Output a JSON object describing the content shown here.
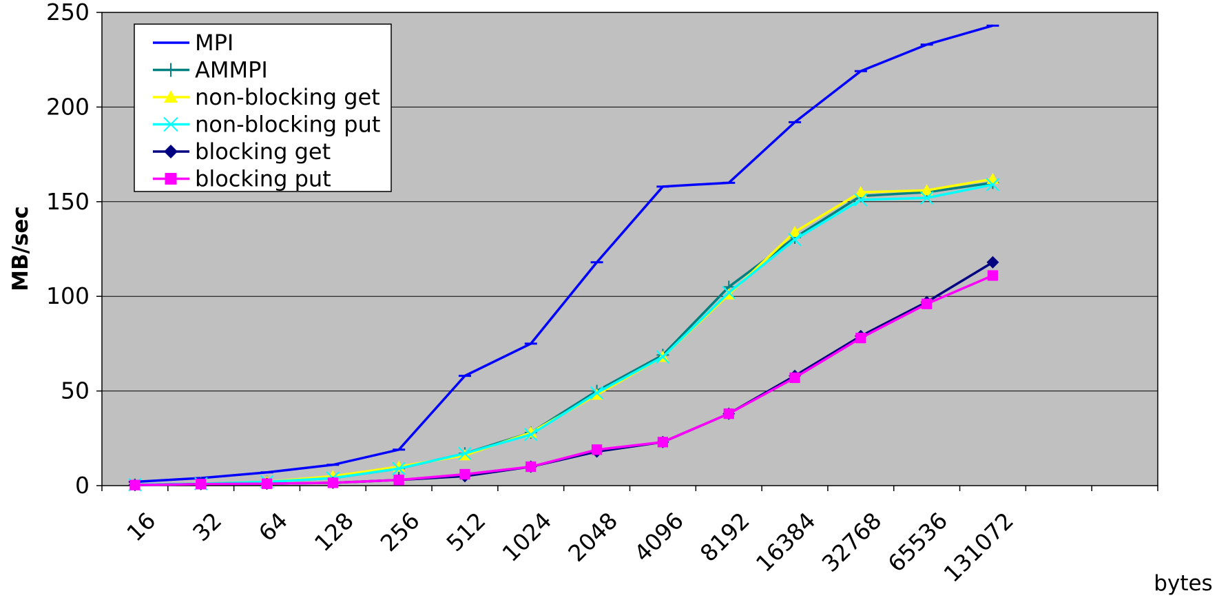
{
  "chart_data": {
    "type": "line",
    "title": "",
    "xlabel": "bytes",
    "ylabel": "MB/sec",
    "x": [
      "16",
      "32",
      "64",
      "128",
      "256",
      "512",
      "1024",
      "2048",
      "4096",
      "8192",
      "16384",
      "32768",
      "65536",
      "131072"
    ],
    "ylim": [
      0,
      250
    ],
    "yticks": [
      "0",
      "50",
      "100",
      "150",
      "200",
      "250"
    ],
    "grid": true,
    "legend_position": "top-left",
    "plot_background": "#c0c0c0",
    "series": [
      {
        "name": "MPI",
        "color": "#0000ff",
        "marker": "dash",
        "values": [
          2,
          4,
          7,
          11,
          19,
          58,
          75,
          118,
          158,
          160,
          192,
          219,
          233,
          243
        ]
      },
      {
        "name": "AMMPI",
        "color": "#008080",
        "marker": "plus",
        "values": [
          0.5,
          1,
          2,
          4,
          9,
          17,
          28,
          50,
          69,
          105,
          131,
          153,
          155,
          160
        ]
      },
      {
        "name": "non-blocking get",
        "color": "#ffff00",
        "marker": "triangle",
        "values": [
          0.5,
          1,
          2,
          5,
          10,
          16,
          28,
          48,
          68,
          101,
          134,
          155,
          156,
          162
        ]
      },
      {
        "name": "non-blocking put",
        "color": "#00ffff",
        "marker": "x",
        "values": [
          0.5,
          1,
          2,
          4,
          9,
          17,
          27,
          49,
          68,
          102,
          130,
          151,
          152,
          159
        ]
      },
      {
        "name": "blocking get",
        "color": "#000080",
        "marker": "diamond",
        "values": [
          0.3,
          0.8,
          1,
          1.5,
          3,
          5,
          10,
          18,
          23,
          38,
          58,
          79,
          97,
          118
        ]
      },
      {
        "name": "blocking put",
        "color": "#ff00ff",
        "marker": "square",
        "values": [
          0.3,
          0.8,
          1,
          1.5,
          3,
          6,
          10,
          19,
          23,
          38,
          57,
          78,
          96,
          111
        ]
      }
    ]
  }
}
